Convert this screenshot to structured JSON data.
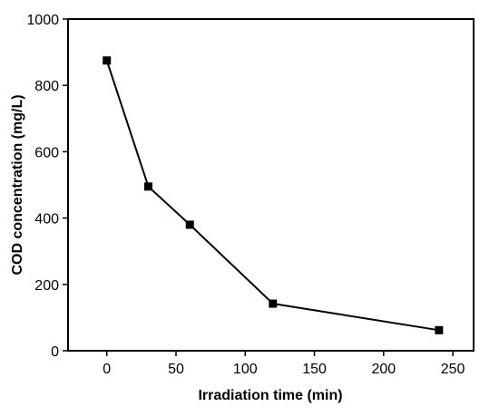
{
  "chart_data": {
    "type": "line",
    "title": "",
    "xlabel": "Irradiation time (min)",
    "ylabel": "COD concentration (mg/L)",
    "xlim": [
      -28,
      265
    ],
    "ylim": [
      0,
      1000
    ],
    "x_ticks": [
      0,
      50,
      100,
      150,
      200,
      250
    ],
    "y_ticks": [
      0,
      200,
      400,
      600,
      800,
      1000
    ],
    "grid": false,
    "legend": "none",
    "colors": {
      "line": "#000000",
      "marker": "#000000",
      "axes": "#000000"
    },
    "series": [
      {
        "x": [
          0,
          30,
          60,
          120,
          240
        ],
        "y": [
          875,
          495,
          380,
          142,
          62
        ],
        "marker": "square"
      }
    ]
  }
}
